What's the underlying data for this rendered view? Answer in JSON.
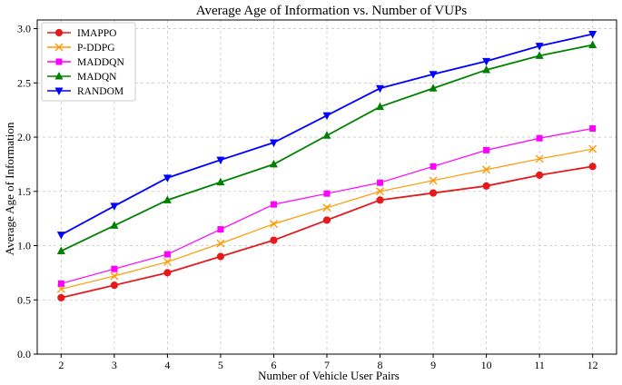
{
  "chart_data": {
    "type": "line",
    "title": "Average Age of Information vs. Number of VUPs",
    "xlabel": "Number of Vehicle User Pairs",
    "ylabel": "Average Age of Information",
    "x": [
      2,
      3,
      4,
      5,
      6,
      7,
      8,
      9,
      10,
      11,
      12
    ],
    "xlim": [
      1.55,
      12.45
    ],
    "ylim": [
      0.0,
      3.08
    ],
    "yticks": [
      0.0,
      0.5,
      1.0,
      1.5,
      2.0,
      2.5,
      3.0
    ],
    "ytick_labels": [
      "0.0",
      "0.5",
      "1.0",
      "1.5",
      "2.0",
      "2.5",
      "3.0"
    ],
    "xtick_labels": [
      "2",
      "3",
      "4",
      "5",
      "6",
      "7",
      "8",
      "9",
      "10",
      "11",
      "12"
    ],
    "grid": true,
    "legend_position": "top-left",
    "series": [
      {
        "name": "IMAPPO",
        "color": "#e41a1c",
        "marker": "circle",
        "values": [
          0.52,
          0.635,
          0.75,
          0.9,
          1.05,
          1.235,
          1.42,
          1.485,
          1.55,
          1.65,
          1.73
        ]
      },
      {
        "name": "P-DDPG",
        "color": "#ff9900",
        "marker": "x",
        "values": [
          0.6,
          0.72,
          0.85,
          1.02,
          1.2,
          1.35,
          1.5,
          1.6,
          1.7,
          1.8,
          1.89
        ]
      },
      {
        "name": "MADDQN",
        "color": "#ff00ff",
        "marker": "square",
        "values": [
          0.65,
          0.785,
          0.92,
          1.15,
          1.38,
          1.48,
          1.58,
          1.73,
          1.88,
          1.99,
          2.08
        ]
      },
      {
        "name": "MADQN",
        "color": "#008000",
        "marker": "triangle-up",
        "values": [
          0.95,
          1.185,
          1.42,
          1.585,
          1.75,
          2.015,
          2.28,
          2.45,
          2.62,
          2.75,
          2.85
        ]
      },
      {
        "name": "RANDOM",
        "color": "#0000ff",
        "marker": "triangle-down",
        "values": [
          1.1,
          1.365,
          1.625,
          1.79,
          1.95,
          2.2,
          2.45,
          2.58,
          2.7,
          2.84,
          2.95
        ]
      }
    ]
  }
}
